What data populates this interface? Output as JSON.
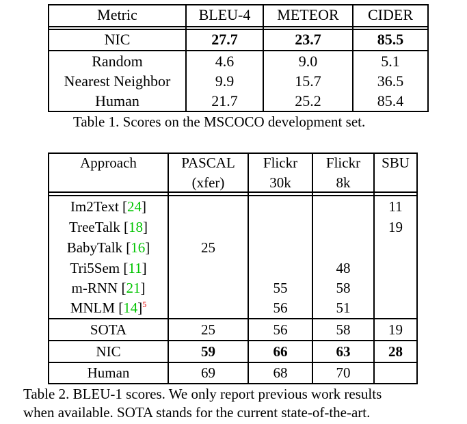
{
  "table1": {
    "headers": [
      "Metric",
      "BLEU-4",
      "METEOR",
      "CIDER"
    ],
    "rows": [
      {
        "name": "NIC",
        "values": [
          "27.7",
          "23.7",
          "85.5"
        ],
        "bold": true
      },
      {
        "name": "Random",
        "values": [
          "4.6",
          "9.0",
          "5.1"
        ],
        "bold": false
      },
      {
        "name": "Nearest Neighbor",
        "values": [
          "9.9",
          "15.7",
          "36.5"
        ],
        "bold": false
      },
      {
        "name": "Human",
        "values": [
          "21.7",
          "25.2",
          "85.4"
        ],
        "bold": false
      }
    ],
    "caption": "Table 1. Scores on the MSCOCO development set."
  },
  "table2": {
    "headers": [
      {
        "line1": "Approach",
        "line2": ""
      },
      {
        "line1": "PASCAL",
        "line2": "(xfer)"
      },
      {
        "line1": "Flickr",
        "line2": "30k"
      },
      {
        "line1": "Flickr",
        "line2": "8k"
      },
      {
        "line1": "SBU",
        "line2": ""
      }
    ],
    "approaches": [
      {
        "name": "Im2Text ",
        "cite": "24",
        "values": [
          "",
          "",
          "",
          "11"
        ]
      },
      {
        "name": "TreeTalk ",
        "cite": "18",
        "values": [
          "",
          "",
          "",
          "19"
        ]
      },
      {
        "name": "BabyTalk ",
        "cite": "16",
        "values": [
          "25",
          "",
          "",
          ""
        ]
      },
      {
        "name": "Tri5Sem ",
        "cite": "11",
        "values": [
          "",
          "",
          "48",
          ""
        ]
      },
      {
        "name": "m-RNN ",
        "cite": "21",
        "values": [
          "",
          "55",
          "58",
          ""
        ]
      },
      {
        "name": "MNLM ",
        "cite": "14",
        "footnote": "5",
        "values": [
          "",
          "56",
          "51",
          ""
        ]
      }
    ],
    "summary": [
      {
        "name": "SOTA",
        "values": [
          "25",
          "56",
          "58",
          "19"
        ],
        "bold": false
      },
      {
        "name": "NIC",
        "values": [
          "59",
          "66",
          "63",
          "28"
        ],
        "bold": true
      },
      {
        "name": "Human",
        "values": [
          "69",
          "68",
          "70",
          ""
        ],
        "bold": false
      }
    ],
    "caption_line1": "Table 2. BLEU-1 scores.  We only report previous work results",
    "caption_line2": "when available. SOTA stands for the current state-of-the-art."
  }
}
